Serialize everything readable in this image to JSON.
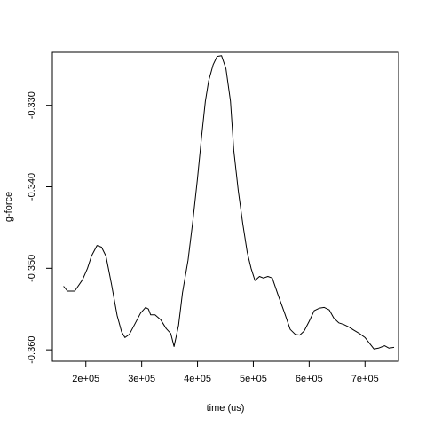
{
  "chart_data": {
    "type": "line",
    "title": "",
    "xlabel": "time (us)",
    "ylabel": "g-force",
    "xlim": [
      140000,
      760000
    ],
    "ylim": [
      -0.3614,
      -0.3235
    ],
    "x_ticks": [
      200000,
      300000,
      400000,
      500000,
      600000,
      700000
    ],
    "x_tick_labels": [
      "2e+05",
      "3e+05",
      "4e+05",
      "5e+05",
      "6e+05",
      "7e+05"
    ],
    "y_ticks": [
      -0.36,
      -0.35,
      -0.34,
      -0.33
    ],
    "y_tick_labels": [
      "-0.360",
      "-0.350",
      "-0.340",
      "-0.330"
    ],
    "grid": false,
    "legend": "none",
    "series": [
      {
        "values": [
          [
            160000,
            -0.3522
          ],
          [
            167000,
            -0.3528
          ],
          [
            180000,
            -0.3528
          ],
          [
            194000,
            -0.3514
          ],
          [
            203000,
            -0.35
          ],
          [
            210000,
            -0.3485
          ],
          [
            220000,
            -0.3472
          ],
          [
            228000,
            -0.3474
          ],
          [
            236000,
            -0.3485
          ],
          [
            246000,
            -0.352
          ],
          [
            256000,
            -0.3558
          ],
          [
            264000,
            -0.3578
          ],
          [
            270000,
            -0.3585
          ],
          [
            278000,
            -0.3581
          ],
          [
            288000,
            -0.3568
          ],
          [
            298000,
            -0.3555
          ],
          [
            307000,
            -0.3548
          ],
          [
            312000,
            -0.355
          ],
          [
            316000,
            -0.3557
          ],
          [
            324000,
            -0.3557
          ],
          [
            334000,
            -0.3563
          ],
          [
            344000,
            -0.3574
          ],
          [
            352000,
            -0.358
          ],
          [
            358000,
            -0.3596
          ],
          [
            366000,
            -0.357
          ],
          [
            373000,
            -0.353
          ],
          [
            383000,
            -0.349
          ],
          [
            392000,
            -0.344
          ],
          [
            400000,
            -0.339
          ],
          [
            407000,
            -0.334
          ],
          [
            414000,
            -0.3295
          ],
          [
            420000,
            -0.327
          ],
          [
            428000,
            -0.325
          ],
          [
            435000,
            -0.324
          ],
          [
            443000,
            -0.3239
          ],
          [
            451000,
            -0.3255
          ],
          [
            459000,
            -0.3295
          ],
          [
            465000,
            -0.3355
          ],
          [
            473000,
            -0.3405
          ],
          [
            481000,
            -0.3445
          ],
          [
            489000,
            -0.348
          ],
          [
            496000,
            -0.35
          ],
          [
            503000,
            -0.3515
          ],
          [
            511000,
            -0.351
          ],
          [
            518000,
            -0.3512
          ],
          [
            526000,
            -0.351
          ],
          [
            534000,
            -0.3512
          ],
          [
            544000,
            -0.3532
          ],
          [
            556000,
            -0.3555
          ],
          [
            566000,
            -0.3575
          ],
          [
            575000,
            -0.3581
          ],
          [
            583000,
            -0.3582
          ],
          [
            591000,
            -0.3577
          ],
          [
            600000,
            -0.3565
          ],
          [
            609000,
            -0.3552
          ],
          [
            618000,
            -0.3549
          ],
          [
            627000,
            -0.3548
          ],
          [
            636000,
            -0.3551
          ],
          [
            644000,
            -0.3561
          ],
          [
            653000,
            -0.3567
          ],
          [
            662000,
            -0.3569
          ],
          [
            671000,
            -0.3572
          ],
          [
            680000,
            -0.3576
          ],
          [
            690000,
            -0.358
          ],
          [
            700000,
            -0.3585
          ],
          [
            708000,
            -0.3592
          ],
          [
            716000,
            -0.3599
          ],
          [
            724000,
            -0.3598
          ],
          [
            735000,
            -0.3595
          ],
          [
            743000,
            -0.3598
          ],
          [
            752000,
            -0.3597
          ]
        ]
      }
    ]
  }
}
